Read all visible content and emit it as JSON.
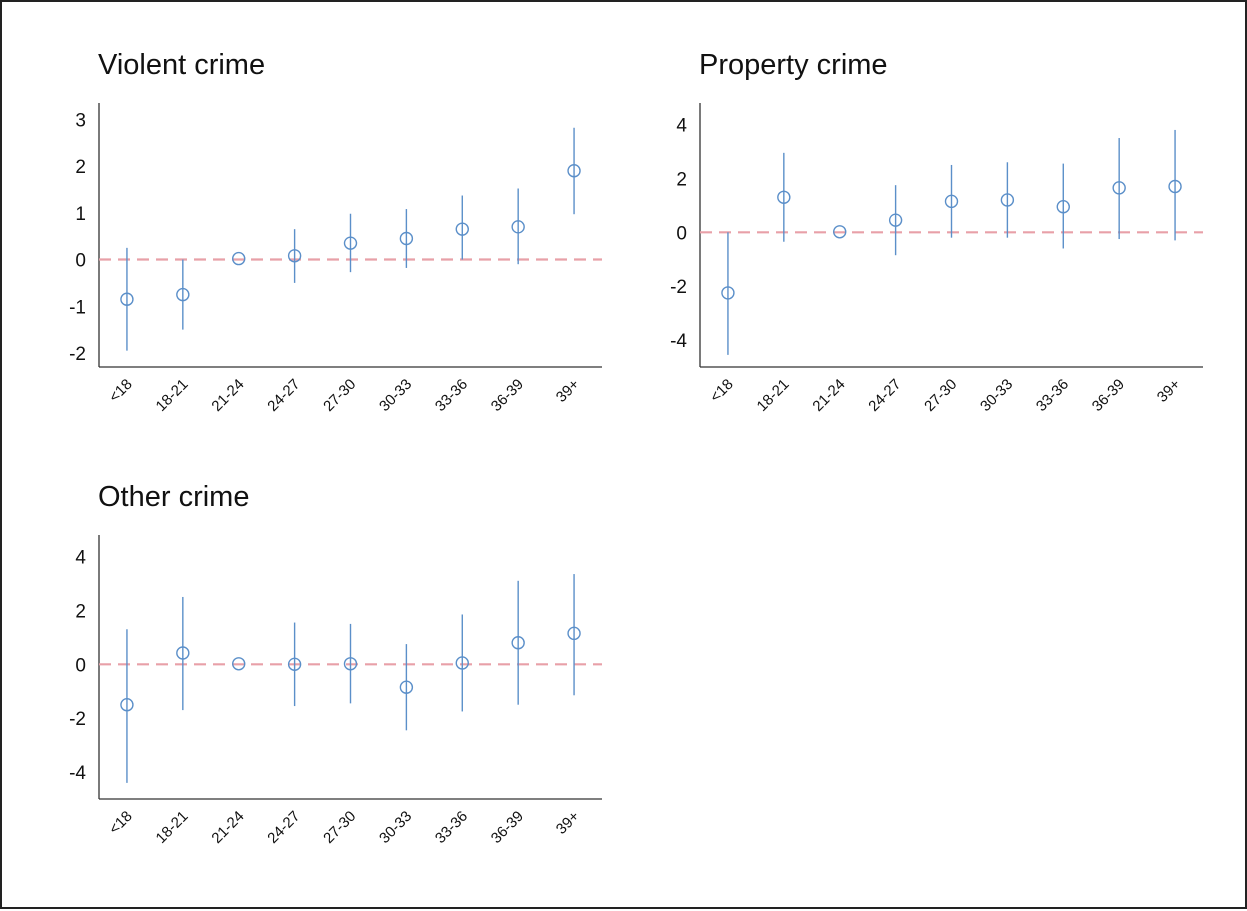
{
  "colors": {
    "marker": "#5b8fc9",
    "whisker": "#5b8fc9",
    "reference_line": "#e8a0a8",
    "axis": "#333333"
  },
  "chart_data": [
    {
      "type": "scatter",
      "title": "Violent crime",
      "categories": [
        "<18",
        "18-21",
        "21-24",
        "24-27",
        "27-30",
        "30-33",
        "33-36",
        "36-39",
        "39+"
      ],
      "values": [
        -0.85,
        -0.75,
        0.02,
        0.08,
        0.35,
        0.45,
        0.65,
        0.7,
        1.9
      ],
      "ci_lower": [
        -1.95,
        -1.5,
        0.02,
        -0.5,
        -0.27,
        -0.18,
        0.0,
        -0.1,
        0.97
      ],
      "ci_upper": [
        0.25,
        0.0,
        0.02,
        0.65,
        0.98,
        1.08,
        1.37,
        1.52,
        2.82
      ],
      "ylim": [
        -2.3,
        3.35
      ],
      "yticks": [
        "-2",
        "-1",
        "0",
        "1",
        "2",
        "3"
      ],
      "reference_line": 0,
      "grid": false,
      "legend": "none"
    },
    {
      "type": "scatter",
      "title": "Property crime",
      "categories": [
        "<18",
        "18-21",
        "21-24",
        "24-27",
        "27-30",
        "30-33",
        "33-36",
        "36-39",
        "39+"
      ],
      "values": [
        -2.25,
        1.3,
        0.02,
        0.45,
        1.15,
        1.2,
        0.95,
        1.65,
        1.7
      ],
      "ci_lower": [
        -4.55,
        -0.35,
        0.02,
        -0.85,
        -0.2,
        -0.2,
        -0.6,
        -0.25,
        -0.3
      ],
      "ci_upper": [
        0.0,
        2.95,
        0.02,
        1.75,
        2.5,
        2.6,
        2.55,
        3.5,
        3.8
      ],
      "ylim": [
        -5.0,
        4.8
      ],
      "yticks": [
        "-4",
        "-2",
        "0",
        "2",
        "4"
      ],
      "reference_line": 0,
      "grid": false,
      "legend": "none"
    },
    {
      "type": "scatter",
      "title": "Other crime",
      "categories": [
        "<18",
        "18-21",
        "21-24",
        "24-27",
        "27-30",
        "30-33",
        "33-36",
        "36-39",
        "39+"
      ],
      "values": [
        -1.5,
        0.42,
        0.02,
        0.0,
        0.02,
        -0.85,
        0.05,
        0.8,
        1.15
      ],
      "ci_lower": [
        -4.4,
        -1.7,
        0.02,
        -1.55,
        -1.45,
        -2.45,
        -1.75,
        -1.5,
        -1.15
      ],
      "ci_upper": [
        1.3,
        2.5,
        0.02,
        1.55,
        1.5,
        0.75,
        1.85,
        3.1,
        3.35
      ],
      "ylim": [
        -5.0,
        4.8
      ],
      "yticks": [
        "-4",
        "-2",
        "0",
        "2",
        "4"
      ],
      "reference_line": 0,
      "grid": false,
      "legend": "none"
    }
  ]
}
